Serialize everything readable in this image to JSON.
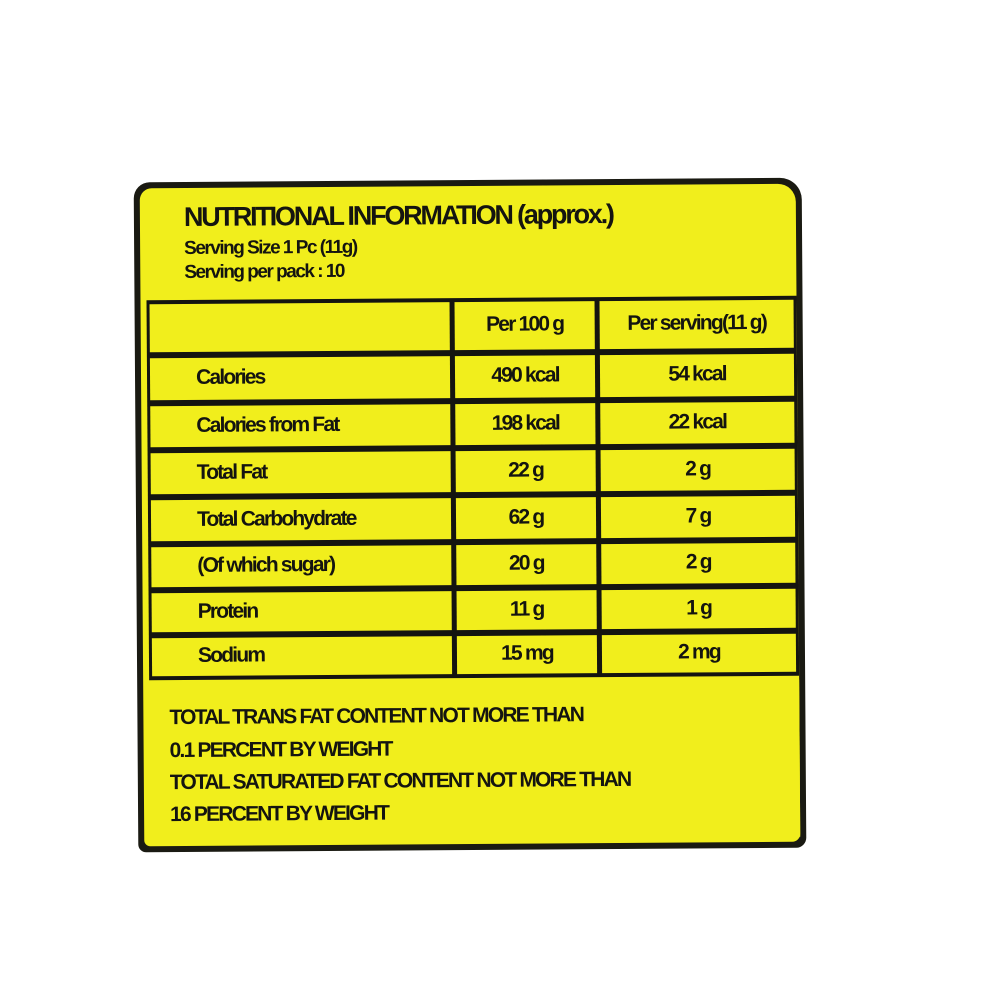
{
  "title": "NUTRITIONAL INFORMATION (approx.)",
  "serving_size": "Serving Size 1 Pc (11g)",
  "servings_per_pack": "Serving per pack : 10",
  "table": {
    "headers": [
      "",
      "Per 100 g",
      "Per serving(11 g)"
    ],
    "rows": [
      {
        "label": "Calories",
        "per_100g": "490 kcal",
        "per_serving": "54 kcal"
      },
      {
        "label": "Calories from Fat",
        "per_100g": "198 kcal",
        "per_serving": "22 kcal"
      },
      {
        "label": "Total Fat",
        "per_100g": "22 g",
        "per_serving": "2 g"
      },
      {
        "label": "Total Carbohydrate",
        "per_100g": "62 g",
        "per_serving": "7 g"
      },
      {
        "label": "(Of which sugar)",
        "per_100g": "20 g",
        "per_serving": "2 g"
      },
      {
        "label": "Protein",
        "per_100g": "11 g",
        "per_serving": "1 g"
      },
      {
        "label": "Sodium",
        "per_100g": "15 mg",
        "per_serving": "2 mg"
      }
    ]
  },
  "footer": [
    "TOTAL TRANS FAT CONTENT NOT MORE THAN",
    "0.1 PERCENT BY WEIGHT",
    "TOTAL SATURATED FAT CONTENT NOT MORE THAN",
    "16 PERCENT BY WEIGHT"
  ],
  "colors": {
    "label_yellow": "#f1ee1c",
    "ink": "#141410"
  }
}
